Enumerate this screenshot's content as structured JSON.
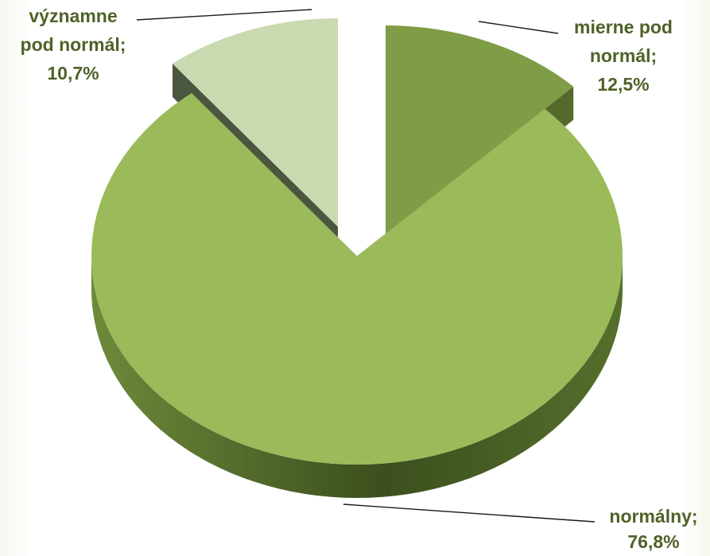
{
  "chart_data": {
    "type": "pie",
    "style": "3d-exploded",
    "title": "",
    "slices": [
      {
        "name": "normálny",
        "label_lines": [
          "normálny;",
          "76,8%"
        ],
        "value": 76.8,
        "color": "#9bba59",
        "side_color": "#5f7833",
        "label_color": "#4f6228"
      },
      {
        "name": "mierne pod normál",
        "label_lines": [
          "mierne pod",
          "normál;",
          "12,5%"
        ],
        "value": 12.5,
        "color": "#7f9d47",
        "side_color": "#55692c",
        "label_color": "#4f6228"
      },
      {
        "name": "významne pod normál",
        "label_lines": [
          "významne",
          "pod normál;",
          "10,7%"
        ],
        "value": 10.7,
        "color": "#c9dab0",
        "side_color": "#4b5640",
        "label_color": "#4f6228"
      }
    ],
    "legend": "none",
    "data_labels": "outside-with-leader-lines"
  }
}
